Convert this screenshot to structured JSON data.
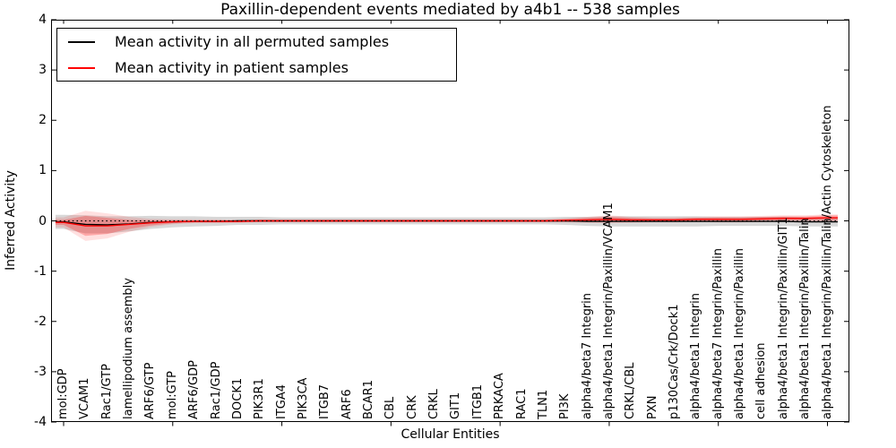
{
  "figure": {
    "title": "Paxillin-dependent events mediated by a4b1 -- 538 samples",
    "xlabel": "Cellular Entities",
    "ylabel": "Inferred Activity"
  },
  "chart_data": {
    "type": "line",
    "title": "Paxillin-dependent events mediated by a4b1 -- 538 samples",
    "xlabel": "Cellular Entities",
    "ylabel": "Inferred Activity",
    "ylim": [
      -4,
      4
    ],
    "yticks": [
      "-4",
      "-3",
      "-2",
      "-1",
      "0",
      "1",
      "2",
      "3",
      "4"
    ],
    "xtick_mark_indices": [
      0,
      5,
      10,
      15,
      20,
      25,
      30,
      35
    ],
    "grid": false,
    "legend_position": "upper left",
    "zero_line": {
      "color": "#000000",
      "style": "dotted",
      "y": 0
    },
    "categories": [
      "mol:GDP",
      "VCAM1",
      "Rac1/GTP",
      "lamellipodium assembly",
      "ARF6/GTP",
      "mol:GTP",
      "ARF6/GDP",
      "Rac1/GDP",
      "DOCK1",
      "PIK3R1",
      "ITGA4",
      "PIK3CA",
      "ITGB7",
      "ARF6",
      "BCAR1",
      "CBL",
      "CRK",
      "CRKL",
      "GIT1",
      "ITGB1",
      "PRKACA",
      "RAC1",
      "TLN1",
      "PI3K",
      "alpha4/beta7 Integrin",
      "alpha4/beta1 Integrin/Paxillin/VCAM1",
      "CRKL/CBL",
      "PXN",
      "p130Cas/Crk/Dock1",
      "alpha4/beta1 Integrin",
      "alpha4/beta7 Integrin/Paxillin",
      "alpha4/beta1 Integrin/Paxillin",
      "cell adhesion",
      "alpha4/beta1 Integrin/Paxillin/GIT1",
      "alpha4/beta1 Integrin/Paxillin/Talin",
      "alpha4/beta1 Integrin/Paxillin/Talin/Actin Cytoskeleton"
    ],
    "series": [
      {
        "name": "Mean activity in all permuted samples",
        "color": "#000000",
        "values": [
          -0.02,
          -0.07,
          -0.08,
          -0.06,
          -0.03,
          -0.02,
          -0.01,
          -0.01,
          0.0,
          0.0,
          0.0,
          0.0,
          0.0,
          0.0,
          0.0,
          0.0,
          0.0,
          0.0,
          0.0,
          0.0,
          0.0,
          0.0,
          0.0,
          0.0,
          -0.01,
          -0.01,
          -0.01,
          -0.01,
          -0.01,
          -0.01,
          -0.01,
          -0.01,
          -0.01,
          -0.01,
          -0.02,
          -0.02
        ],
        "bands": [
          {
            "halfwidths": [
              0.14,
              0.18,
              0.17,
              0.15,
              0.13,
              0.11,
              0.1,
              0.09,
              0.08,
              0.08,
              0.07,
              0.07,
              0.07,
              0.07,
              0.07,
              0.07,
              0.07,
              0.07,
              0.07,
              0.07,
              0.07,
              0.07,
              0.07,
              0.08,
              0.09,
              0.1,
              0.1,
              0.1,
              0.1,
              0.1,
              0.09,
              0.09,
              0.09,
              0.09,
              0.09,
              0.09
            ],
            "color": "#999999",
            "opacity": 0.38
          }
        ]
      },
      {
        "name": "Mean activity in patient samples",
        "color": "#ff0000",
        "values": [
          -0.03,
          -0.1,
          -0.1,
          -0.07,
          -0.04,
          -0.02,
          -0.01,
          -0.01,
          -0.01,
          0.0,
          0.0,
          0.0,
          0.0,
          0.0,
          0.0,
          0.0,
          0.0,
          0.0,
          0.0,
          0.0,
          0.0,
          0.0,
          0.0,
          0.01,
          0.02,
          0.03,
          0.02,
          0.02,
          0.02,
          0.03,
          0.03,
          0.03,
          0.04,
          0.05,
          0.05,
          0.06
        ],
        "bands": [
          {
            "halfwidths": [
              0.1,
              0.3,
              0.25,
              0.15,
              0.08,
              0.05,
              0.04,
              0.04,
              0.03,
              0.03,
              0.03,
              0.03,
              0.03,
              0.03,
              0.03,
              0.03,
              0.03,
              0.03,
              0.03,
              0.03,
              0.03,
              0.03,
              0.03,
              0.04,
              0.06,
              0.08,
              0.06,
              0.05,
              0.05,
              0.05,
              0.06,
              0.06,
              0.06,
              0.06,
              0.06,
              0.07
            ],
            "color": "#ff0000",
            "opacity": 0.12
          },
          {
            "halfwidths": [
              0.05,
              0.2,
              0.16,
              0.09,
              0.05,
              0.03,
              0.02,
              0.02,
              0.02,
              0.02,
              0.02,
              0.02,
              0.02,
              0.02,
              0.02,
              0.02,
              0.02,
              0.02,
              0.02,
              0.02,
              0.02,
              0.02,
              0.02,
              0.03,
              0.04,
              0.05,
              0.04,
              0.03,
              0.03,
              0.03,
              0.04,
              0.04,
              0.04,
              0.04,
              0.04,
              0.05
            ],
            "color": "#ff0000",
            "opacity": 0.25
          }
        ]
      }
    ]
  }
}
